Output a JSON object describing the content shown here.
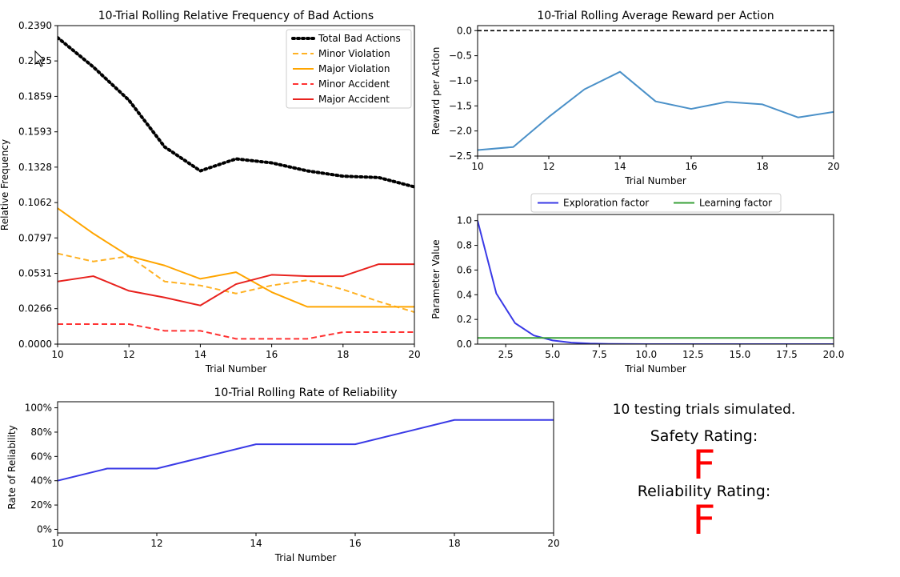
{
  "chart_data": [
    {
      "id": "bad",
      "type": "line",
      "title": "10-Trial Rolling Relative Frequency of Bad Actions",
      "xlabel": "Trial Number",
      "ylabel": "Relative Frequency",
      "xlim": [
        10,
        20
      ],
      "ylim": [
        0,
        0.239
      ],
      "xticks": [
        10,
        12,
        14,
        16,
        18,
        20
      ],
      "yticks": [
        0.0,
        0.0266,
        0.0531,
        0.0797,
        0.1062,
        0.1328,
        0.1593,
        0.1859,
        0.2125,
        0.239
      ],
      "ytick_labels": [
        "0.0000",
        "0.0266",
        "0.0531",
        "0.0797",
        "0.1062",
        "0.1328",
        "0.1593",
        "0.1859",
        "0.2125",
        "0.2390"
      ],
      "legend": "top-right",
      "x": [
        10,
        11,
        12,
        13,
        14,
        15,
        16,
        17,
        18,
        19,
        20
      ],
      "series": [
        {
          "name": "Total Bad Actions",
          "color": "#000000",
          "style": "dotted",
          "values": [
            0.23,
            0.208,
            0.183,
            0.148,
            0.13,
            0.139,
            0.136,
            0.13,
            0.126,
            0.125,
            0.118
          ]
        },
        {
          "name": "Minor Violation",
          "color": "#ffb224",
          "style": "dashed",
          "values": [
            0.068,
            0.062,
            0.066,
            0.047,
            0.044,
            0.038,
            0.044,
            0.048,
            0.041,
            0.032,
            0.024
          ]
        },
        {
          "name": "Major Violation",
          "color": "#ffa500",
          "style": "solid",
          "values": [
            0.102,
            0.083,
            0.066,
            0.059,
            0.049,
            0.054,
            0.039,
            0.028,
            0.028,
            0.028,
            0.028
          ]
        },
        {
          "name": "Minor Accident",
          "color": "#ff3333",
          "style": "dashed",
          "values": [
            0.015,
            0.015,
            0.015,
            0.01,
            0.01,
            0.004,
            0.004,
            0.004,
            0.009,
            0.009,
            0.009
          ]
        },
        {
          "name": "Major Accident",
          "color": "#e8231f",
          "style": "solid",
          "values": [
            0.047,
            0.051,
            0.04,
            0.035,
            0.029,
            0.045,
            0.052,
            0.051,
            0.051,
            0.06,
            0.06
          ]
        }
      ]
    },
    {
      "id": "reward",
      "type": "line",
      "title": "10-Trial Rolling Average Reward per Action",
      "xlabel": "Trial Number",
      "ylabel": "Reward per Action",
      "xlim": [
        10,
        20
      ],
      "ylim": [
        -2.5,
        0.1
      ],
      "xticks": [
        10,
        12,
        14,
        16,
        18,
        20
      ],
      "yticks": [
        0.0,
        -0.5,
        -1.0,
        -1.5,
        -2.0,
        -2.5
      ],
      "ytick_labels": [
        "0.0",
        "−0.5",
        "−1.0",
        "−1.5",
        "−2.0",
        "−2.5"
      ],
      "reference_line": {
        "y": 0.0,
        "color": "#000000",
        "style": "dashed"
      },
      "x": [
        10,
        11,
        12,
        13,
        14,
        15,
        16,
        17,
        18,
        19,
        20
      ],
      "series": [
        {
          "color": "#4a90c8",
          "style": "solid",
          "values": [
            -2.38,
            -2.32,
            -1.72,
            -1.17,
            -0.82,
            -1.41,
            -1.56,
            -1.42,
            -1.47,
            -1.73,
            -1.62
          ]
        }
      ]
    },
    {
      "id": "params",
      "type": "line",
      "xlabel": "Trial Number",
      "ylabel": "Parameter Value",
      "xlim": [
        1,
        20
      ],
      "ylim": [
        0,
        1.05
      ],
      "xticks": [
        2.5,
        5.0,
        7.5,
        10.0,
        12.5,
        15.0,
        17.5,
        20.0
      ],
      "xtick_labels": [
        "2.5",
        "5.0",
        "7.5",
        "10.0",
        "12.5",
        "15.0",
        "17.5",
        "20.0"
      ],
      "yticks": [
        0.0,
        0.2,
        0.4,
        0.6,
        0.8,
        1.0
      ],
      "ytick_labels": [
        "0.0",
        "0.2",
        "0.4",
        "0.6",
        "0.8",
        "1.0"
      ],
      "legend": "top-center",
      "x": [
        1,
        2,
        3,
        4,
        5,
        6,
        7,
        8,
        9,
        10,
        11,
        12,
        13,
        14,
        15,
        16,
        17,
        18,
        19,
        20
      ],
      "series": [
        {
          "name": "Exploration factor",
          "color": "#3a3ae6",
          "style": "solid",
          "values": [
            1.0,
            0.41,
            0.17,
            0.07,
            0.03,
            0.012,
            0.005,
            0.002,
            0.001,
            0,
            0,
            0,
            0,
            0,
            0,
            0,
            0,
            0,
            0,
            0
          ]
        },
        {
          "name": "Learning factor",
          "color": "#3aa13a",
          "style": "solid",
          "values": [
            0.05,
            0.05,
            0.05,
            0.05,
            0.05,
            0.05,
            0.05,
            0.05,
            0.05,
            0.05,
            0.05,
            0.05,
            0.05,
            0.05,
            0.05,
            0.05,
            0.05,
            0.05,
            0.05,
            0.05
          ]
        }
      ]
    },
    {
      "id": "reliability",
      "type": "line",
      "title": "10-Trial Rolling Rate of Reliability",
      "xlabel": "Trial Number",
      "ylabel": "Rate of Reliability",
      "xlim": [
        10,
        20
      ],
      "ylim": [
        -3,
        105
      ],
      "xticks": [
        10,
        12,
        14,
        16,
        18,
        20
      ],
      "yticks": [
        0,
        20,
        40,
        60,
        80,
        100
      ],
      "ytick_labels": [
        "0%",
        "20%",
        "40%",
        "60%",
        "80%",
        "100%"
      ],
      "x": [
        10,
        11,
        12,
        13,
        14,
        15,
        16,
        17,
        18,
        19,
        20
      ],
      "series": [
        {
          "color": "#3a3ae6",
          "style": "solid",
          "values": [
            40,
            50,
            50,
            60,
            70,
            70,
            70,
            80,
            90,
            90,
            90
          ]
        }
      ]
    }
  ],
  "summary": {
    "trials_text": "10 testing trials simulated.",
    "safety_label": "Safety Rating:",
    "safety_grade": "F",
    "safety_color": "#ff0000",
    "reliability_label": "Reliability Rating:",
    "reliability_grade": "F",
    "reliability_color": "#ff0000"
  }
}
